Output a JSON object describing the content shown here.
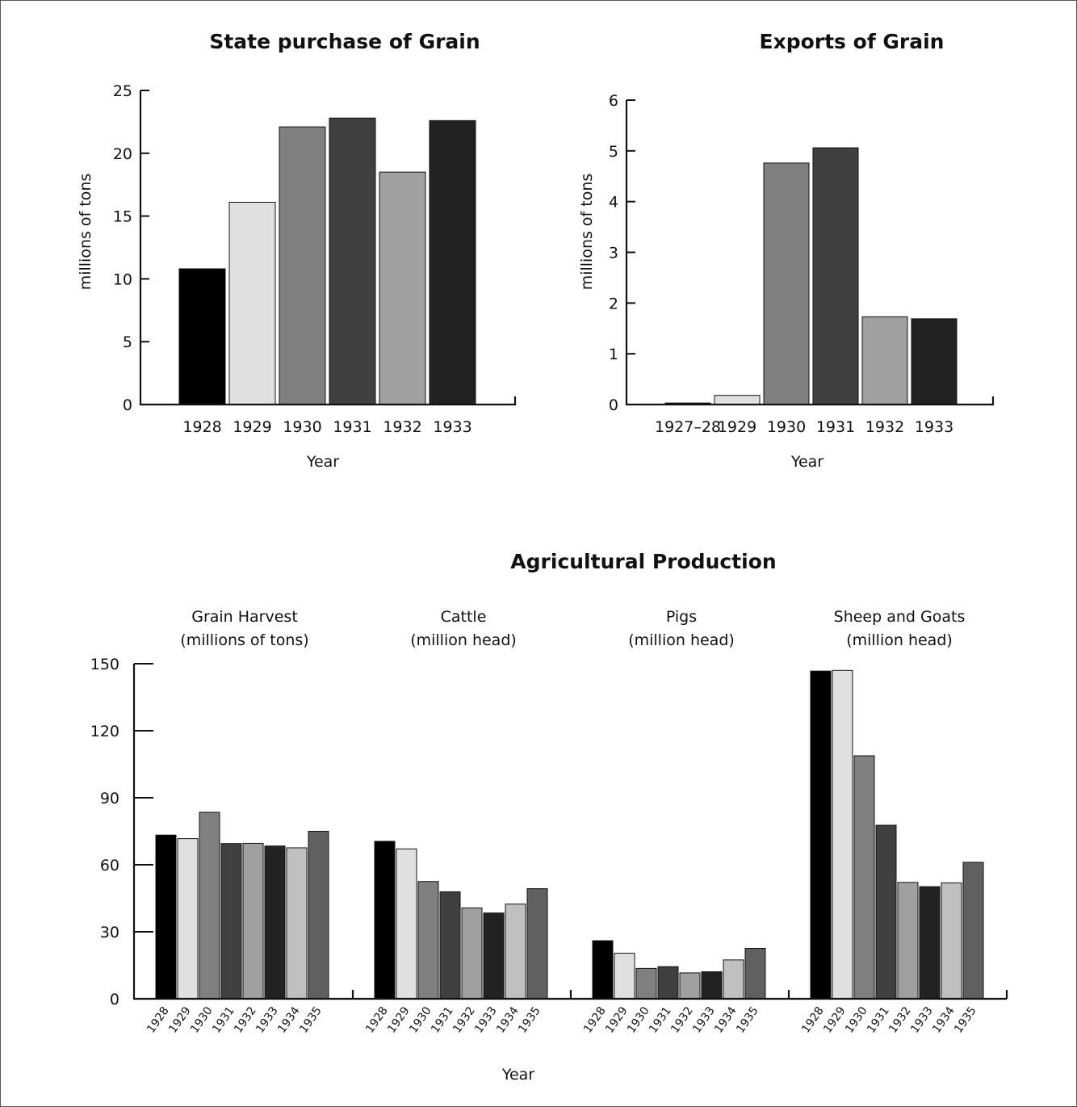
{
  "palette": [
    "#000000",
    "#e0e0e0",
    "#808080",
    "#404040",
    "#a0a0a0",
    "#222222",
    "#c0c0c0",
    "#606060"
  ],
  "chart_data": [
    {
      "type": "bar",
      "title": "State purchase of Grain",
      "xlabel": "Year",
      "ylabel": "millions of tons",
      "ylim": [
        0,
        25
      ],
      "yticks": [
        "0",
        "5",
        "10",
        "15",
        "20",
        "25"
      ],
      "categories": [
        "1928",
        "1929",
        "1930",
        "1931",
        "1932",
        "1933"
      ],
      "values": [
        10.8,
        16.1,
        22.1,
        22.8,
        18.5,
        22.6
      ],
      "grid": false,
      "legend": "none"
    },
    {
      "type": "bar",
      "title": "Exports of Grain",
      "xlabel": "Year",
      "ylabel": "millions of tons",
      "ylim": [
        0,
        6
      ],
      "yticks": [
        "0",
        "1",
        "2",
        "3",
        "4",
        "5",
        "6"
      ],
      "categories": [
        "1927–28",
        "1929",
        "1930",
        "1931",
        "1932",
        "1933"
      ],
      "values": [
        0.03,
        0.18,
        4.76,
        5.06,
        1.73,
        1.69
      ],
      "grid": false,
      "legend": "none"
    },
    {
      "type": "bar",
      "title": "Agricultural Production",
      "xlabel": "Year",
      "ylim": [
        0,
        150
      ],
      "yticks": [
        "0",
        "30",
        "60",
        "90",
        "120",
        "150"
      ],
      "grid": false,
      "legend": "none",
      "groups": [
        {
          "label_line1": "Grain Harvest",
          "label_line2": "(millions of tons)",
          "categories": [
            "1928",
            "1929",
            "1930",
            "1931",
            "1932",
            "1933",
            "1934",
            "1935"
          ],
          "values": [
            73.3,
            71.7,
            83.5,
            69.5,
            69.6,
            68.4,
            67.6,
            75.0
          ]
        },
        {
          "label_line1": "Cattle",
          "label_line2": "(million head)",
          "categories": [
            "1928",
            "1929",
            "1930",
            "1931",
            "1932",
            "1933",
            "1934",
            "1935"
          ],
          "values": [
            70.5,
            67.1,
            52.5,
            47.9,
            40.7,
            38.4,
            42.4,
            49.3
          ]
        },
        {
          "label_line1": "Pigs",
          "label_line2": "(million head)",
          "categories": [
            "1928",
            "1929",
            "1930",
            "1931",
            "1932",
            "1933",
            "1934",
            "1935"
          ],
          "values": [
            26.0,
            20.4,
            13.6,
            14.4,
            11.6,
            12.1,
            17.4,
            22.6
          ]
        },
        {
          "label_line1": "Sheep and Goats",
          "label_line2": "(million head)",
          "categories": [
            "1928",
            "1929",
            "1930",
            "1931",
            "1932",
            "1933",
            "1934",
            "1935"
          ],
          "values": [
            146.7,
            147.0,
            108.8,
            77.7,
            52.1,
            50.2,
            51.9,
            61.1
          ]
        }
      ]
    }
  ]
}
